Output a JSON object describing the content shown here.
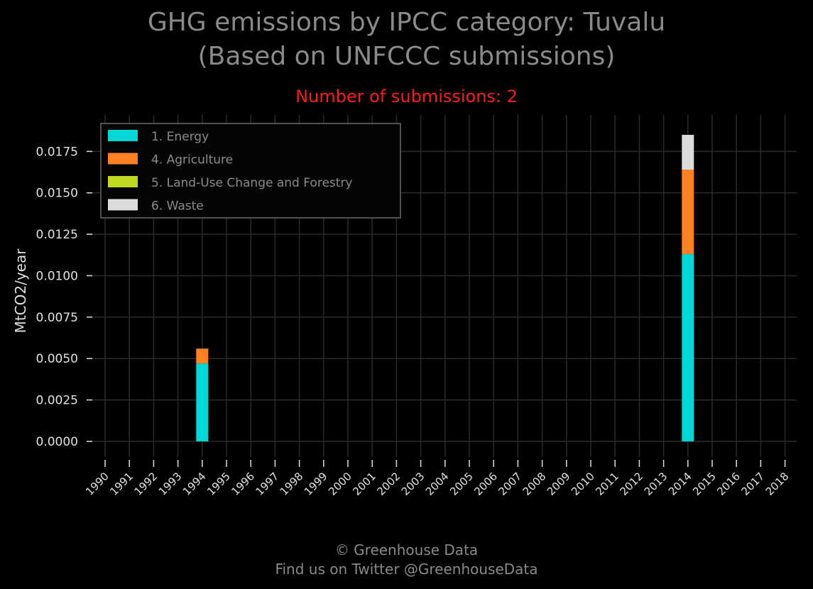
{
  "header": {
    "title_line1": "GHG emissions by IPCC category: Tuvalu",
    "title_line2": "(Based on UNFCCC submissions)",
    "subtitle": "Number of submissions: 2"
  },
  "footer": {
    "line1": "© Greenhouse Data",
    "line2": "Find us on Twitter @GreenhouseData"
  },
  "chart_data": {
    "type": "bar",
    "stacked": true,
    "ylabel": "MtCO2/year",
    "xlabel": "",
    "ylim": [
      -0.0012,
      0.0197
    ],
    "yticks": [
      0.0,
      0.0025,
      0.005,
      0.0075,
      0.01,
      0.0125,
      0.015,
      0.0175
    ],
    "ytick_labels": [
      "0.0000",
      "0.0025",
      "0.0050",
      "0.0075",
      "0.0100",
      "0.0125",
      "0.0150",
      "0.0175"
    ],
    "categories": [
      "1990",
      "1991",
      "1992",
      "1993",
      "1994",
      "1995",
      "1996",
      "1997",
      "1998",
      "1999",
      "2000",
      "2001",
      "2002",
      "2003",
      "2004",
      "2005",
      "2006",
      "2007",
      "2008",
      "2009",
      "2010",
      "2011",
      "2012",
      "2013",
      "2014",
      "2015",
      "2016",
      "2017",
      "2018"
    ],
    "series": [
      {
        "name": "1. Energy",
        "color": "#00d8d8",
        "values": {
          "1994": 0.0047,
          "2014": 0.0113
        }
      },
      {
        "name": "4. Agriculture",
        "color": "#ff8020",
        "values": {
          "1994": 0.0009,
          "2014": 0.0051
        }
      },
      {
        "name": "5. Land-Use Change and Forestry",
        "color": "#c0d820",
        "values": {
          "1994": 0.0,
          "2014": 0.0
        }
      },
      {
        "name": "6. Waste",
        "color": "#dcdcdc",
        "values": {
          "1994": 0.0,
          "2014": 0.0021
        }
      }
    ],
    "grid": true,
    "legend_position": "top-left",
    "colors": {
      "background": "#000000",
      "grid": "#2a2a2a",
      "tick_text": "#e0e0e0",
      "legend_text": "#8a8a8a",
      "subtitle": "#ff1a1a"
    }
  }
}
